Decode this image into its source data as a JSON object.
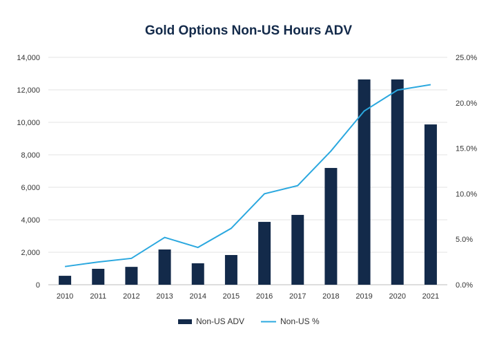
{
  "chart_data": {
    "type": "bar+line",
    "title": "Gold Options Non-US Hours ADV",
    "categories": [
      "2010",
      "2011",
      "2012",
      "2013",
      "2014",
      "2015",
      "2016",
      "2017",
      "2018",
      "2019",
      "2020",
      "2021"
    ],
    "series": [
      {
        "name": "Non-US ADV",
        "type": "bar",
        "axis": "left",
        "color": "#132a4a",
        "values": [
          550,
          980,
          1100,
          2170,
          1320,
          1830,
          3870,
          4300,
          7190,
          12640,
          12640,
          9870
        ]
      },
      {
        "name": "Non-US %",
        "type": "line",
        "axis": "right",
        "color": "#2ba8df",
        "values": [
          2.0,
          2.5,
          2.9,
          5.2,
          4.1,
          6.2,
          10.0,
          10.9,
          14.7,
          19.1,
          21.4,
          22.0
        ]
      }
    ],
    "ylim": [
      0,
      14000
    ],
    "yticks": [
      "0",
      "2,000",
      "4,000",
      "6,000",
      "8,000",
      "10,000",
      "12,000",
      "14,000"
    ],
    "y2lim": [
      0,
      25
    ],
    "y2ticks": [
      "0.0%",
      "5.0%",
      "10.0%",
      "15.0%",
      "20.0%",
      "25.0%"
    ],
    "grid": true,
    "legend": "bottom-center"
  }
}
